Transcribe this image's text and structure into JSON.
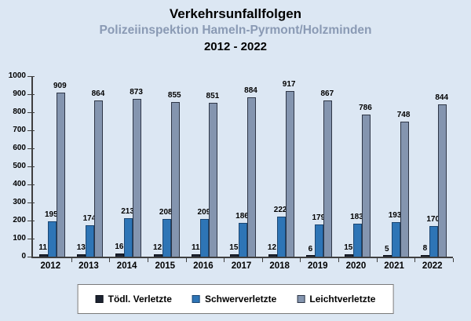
{
  "header": {
    "title": "Verkehrsunfallfolgen",
    "subtitle": "Polizeiinspektion Hameln-Pyrmont/Holzminden",
    "period": "2012 - 2022"
  },
  "chart_data": {
    "type": "bar",
    "categories": [
      "2012",
      "2013",
      "2014",
      "2015",
      "2016",
      "2017",
      "2018",
      "2019",
      "2020",
      "2021",
      "2022"
    ],
    "series": [
      {
        "name": "Tödl. Verletzte",
        "color": "#1c2331",
        "border": "#0b0f18",
        "values": [
          11,
          13,
          16,
          12,
          11,
          15,
          12,
          6,
          15,
          5,
          8
        ]
      },
      {
        "name": "Schwerverletzte",
        "color": "#2e75b6",
        "border": "#1b4672",
        "values": [
          195,
          174,
          213,
          208,
          209,
          186,
          222,
          179,
          183,
          193,
          170
        ]
      },
      {
        "name": "Leichtverletzte",
        "color": "#8495af",
        "border": "#2e3646",
        "values": [
          909,
          864,
          873,
          855,
          851,
          884,
          917,
          867,
          786,
          748,
          844
        ]
      }
    ],
    "title": "Verkehrsunfallfolgen Polizeiinspektion Hameln-Pyrmont/Holzminden 2012 - 2022",
    "xlabel": "",
    "ylabel": "",
    "ylim": [
      0,
      1000
    ],
    "yticks": [
      0,
      100,
      200,
      300,
      400,
      500,
      600,
      700,
      800,
      900,
      1000
    ],
    "grid": false,
    "value_labels": true,
    "legend_position": "bottom"
  },
  "colors": {
    "background": "#dce7f3",
    "axis": "#3f3f3f",
    "subtitle": "#8a9ab4",
    "legend_background": "#ffffff",
    "legend_border": "#7a7a7a"
  }
}
